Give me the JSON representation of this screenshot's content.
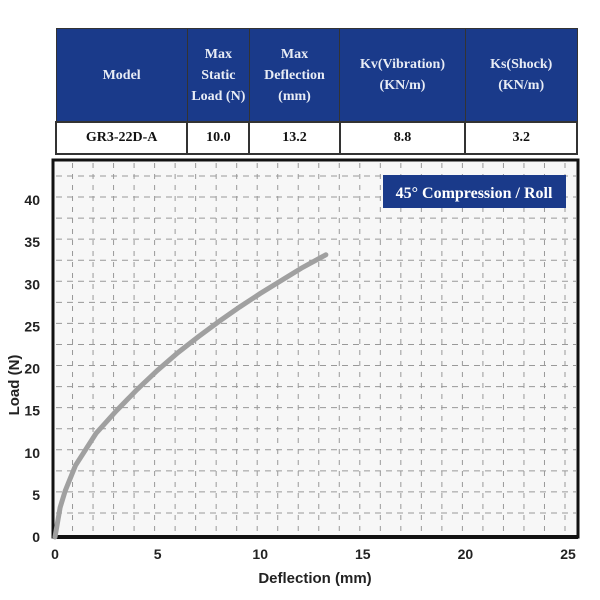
{
  "table": {
    "headers": [
      "Model",
      "Max Static Load (N)",
      "Max Deflection (mm)",
      "Kv(Vibration) (KN/m)",
      "Ks(Shock) (KN/m)"
    ],
    "row": [
      "GR3-22D-A",
      "10.0",
      "13.2",
      "8.8",
      "3.2"
    ],
    "header_color": "#1a3a8a"
  },
  "chart_data": {
    "type": "line",
    "title": "45° Compression / Roll",
    "xlabel": "Deflection (mm)",
    "ylabel": "Load (N)",
    "xlim": [
      0,
      25
    ],
    "ylim": [
      0,
      45
    ],
    "xticks": [
      0,
      5,
      10,
      15,
      20,
      25
    ],
    "yticks": [
      0,
      5,
      10,
      15,
      20,
      25,
      30,
      35,
      40
    ],
    "grid": true,
    "series": [
      {
        "color": "#a0a0a0",
        "x": [
          0,
          0.25,
          0.5,
          1,
          2,
          3,
          4,
          5,
          6,
          7,
          8,
          9,
          10,
          11,
          12,
          13.2
        ],
        "y": [
          0,
          3.5,
          5.5,
          8.5,
          12.3,
          15,
          17.5,
          19.8,
          21.9,
          23.8,
          25.6,
          27.3,
          28.9,
          30.4,
          31.9,
          33.5
        ]
      }
    ]
  }
}
